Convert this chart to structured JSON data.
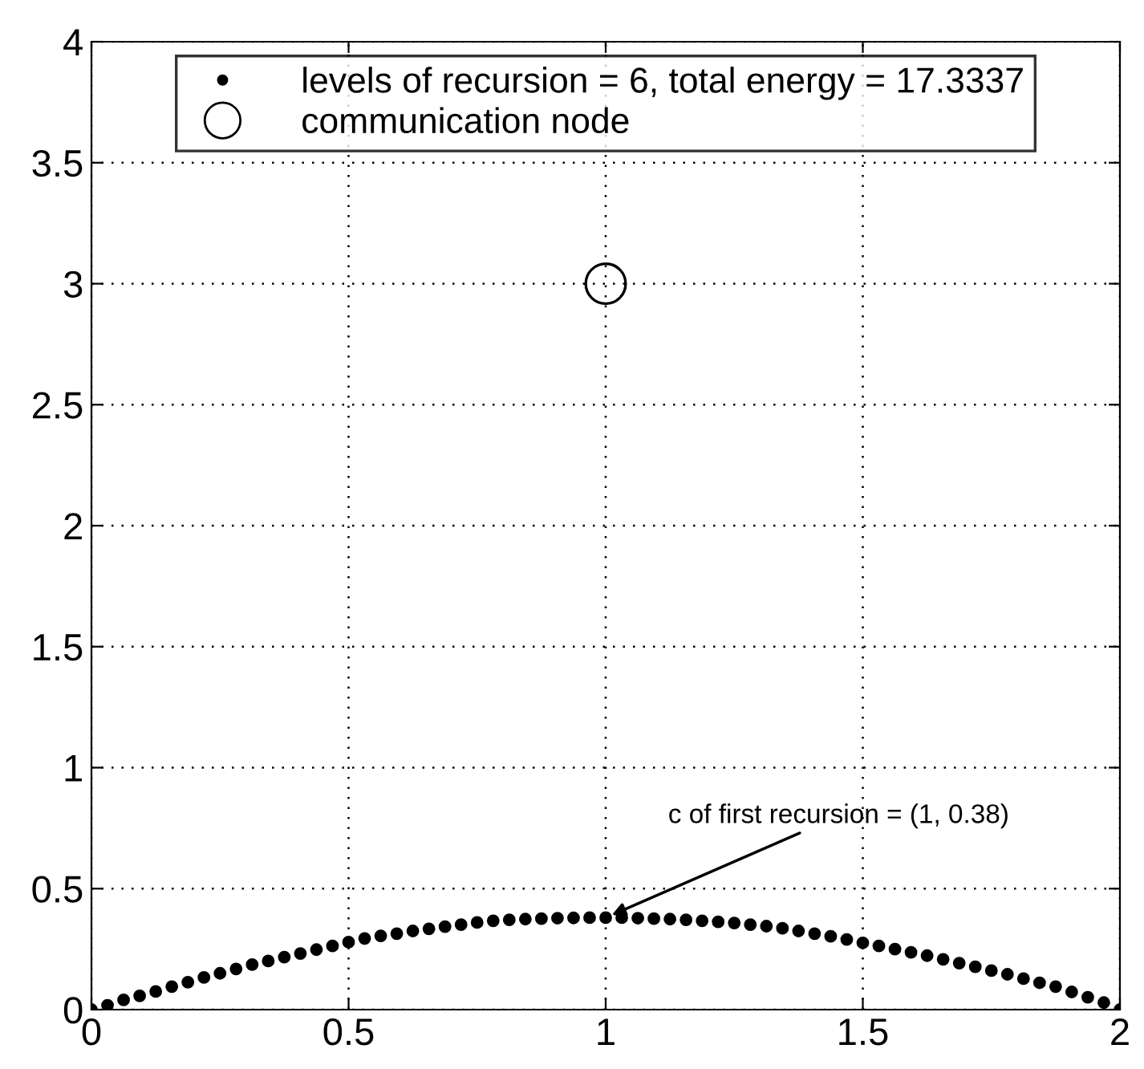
{
  "chart_data": {
    "type": "scatter",
    "series": [
      {
        "name": "levels of recursion = 6, total energy = 17.3337",
        "color": "#000000",
        "marker": "circle",
        "x": [
          0,
          0.03125,
          0.0625,
          0.09375,
          0.125,
          0.15625,
          0.1875,
          0.21875,
          0.25,
          0.28125,
          0.3125,
          0.34375,
          0.375,
          0.40625,
          0.4375,
          0.46875,
          0.5,
          0.53125,
          0.5625,
          0.59375,
          0.625,
          0.65625,
          0.6875,
          0.71875,
          0.75,
          0.78125,
          0.8125,
          0.84375,
          0.875,
          0.90625,
          0.9375,
          0.96875,
          1,
          1.03125,
          1.0625,
          1.09375,
          1.125,
          1.15625,
          1.1875,
          1.21875,
          1.25,
          1.28125,
          1.3125,
          1.34375,
          1.375,
          1.40625,
          1.4375,
          1.46875,
          1.5,
          1.53125,
          1.5625,
          1.59375,
          1.625,
          1.65625,
          1.6875,
          1.71875,
          1.75,
          1.78125,
          1.8125,
          1.84375,
          1.875,
          1.90625,
          1.9375,
          1.96875,
          2
        ],
        "values": [
          0,
          0.018,
          0.04,
          0.057,
          0.075,
          0.095,
          0.113,
          0.133,
          0.15,
          0.168,
          0.186,
          0.201,
          0.217,
          0.232,
          0.248,
          0.263,
          0.279,
          0.294,
          0.305,
          0.314,
          0.325,
          0.334,
          0.343,
          0.351,
          0.36,
          0.367,
          0.371,
          0.374,
          0.376,
          0.378,
          0.379,
          0.38,
          0.38,
          0.38,
          0.378,
          0.376,
          0.374,
          0.371,
          0.367,
          0.363,
          0.358,
          0.351,
          0.345,
          0.336,
          0.325,
          0.314,
          0.303,
          0.29,
          0.276,
          0.263,
          0.25,
          0.237,
          0.223,
          0.208,
          0.192,
          0.177,
          0.161,
          0.146,
          0.128,
          0.111,
          0.095,
          0.073,
          0.051,
          0.029,
          0
        ]
      },
      {
        "name": "communication node",
        "type": "bubble",
        "color": "#000000",
        "marker": "circle",
        "x": [
          1
        ],
        "values": [
          3
        ],
        "sizes": [
          1
        ]
      }
    ],
    "annotations": [
      {
        "text": "c of first recursion = (1, 0.38)",
        "x": 1,
        "y": 0.38
      }
    ],
    "xlim": [
      0,
      2
    ],
    "ylim": [
      0,
      4
    ],
    "xticks": [
      0,
      0.5,
      1,
      1.5,
      2
    ],
    "yticks": [
      0,
      0.5,
      1,
      1.5,
      2,
      2.5,
      3,
      3.5,
      4
    ],
    "grid": true,
    "legend": "top"
  }
}
